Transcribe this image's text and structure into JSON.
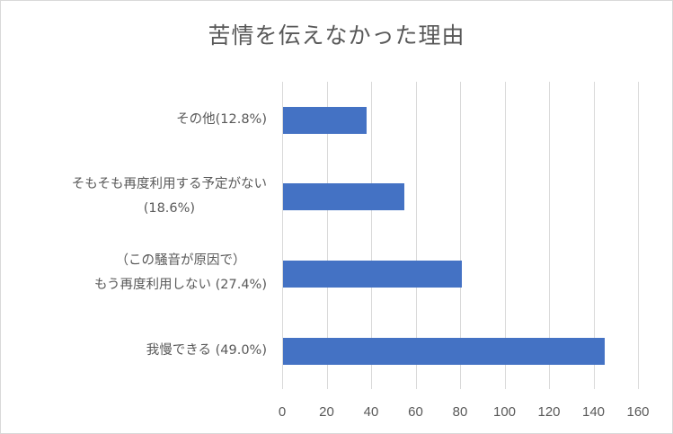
{
  "chart_data": {
    "type": "bar",
    "orientation": "horizontal",
    "title": "苦情を伝えなかった理由",
    "categories": [
      "その他(12.8%)",
      "そもそも再度利用する予定がない (18.6%)",
      "（この騒音が原因で） もう再度利用しない (27.4%)",
      "我慢できる (49.0%)"
    ],
    "values": [
      38,
      55,
      81,
      145
    ],
    "percentages": [
      "12.8%",
      "18.6%",
      "27.4%",
      "49.0%"
    ],
    "xlabel": "",
    "ylabel": "",
    "xlim": [
      0,
      160
    ],
    "xticks": [
      0,
      20,
      40,
      60,
      80,
      100,
      120,
      140,
      160
    ],
    "grid": "vertical",
    "legend": "none",
    "bar_color": "#4472C4"
  },
  "title": "苦情を伝えなかった理由",
  "labels": [
    {
      "lines": [
        "その他(12.8%)"
      ]
    },
    {
      "lines": [
        "そもそも再度利用する予定がない",
        "(18.6%)"
      ]
    },
    {
      "lines": [
        "（この騒音が原因で）",
        "もう再度利用しない (27.4%)"
      ]
    },
    {
      "lines": [
        "我慢できる (49.0%)"
      ]
    }
  ],
  "ticks": [
    "0",
    "20",
    "40",
    "60",
    "80",
    "100",
    "120",
    "140",
    "160"
  ]
}
